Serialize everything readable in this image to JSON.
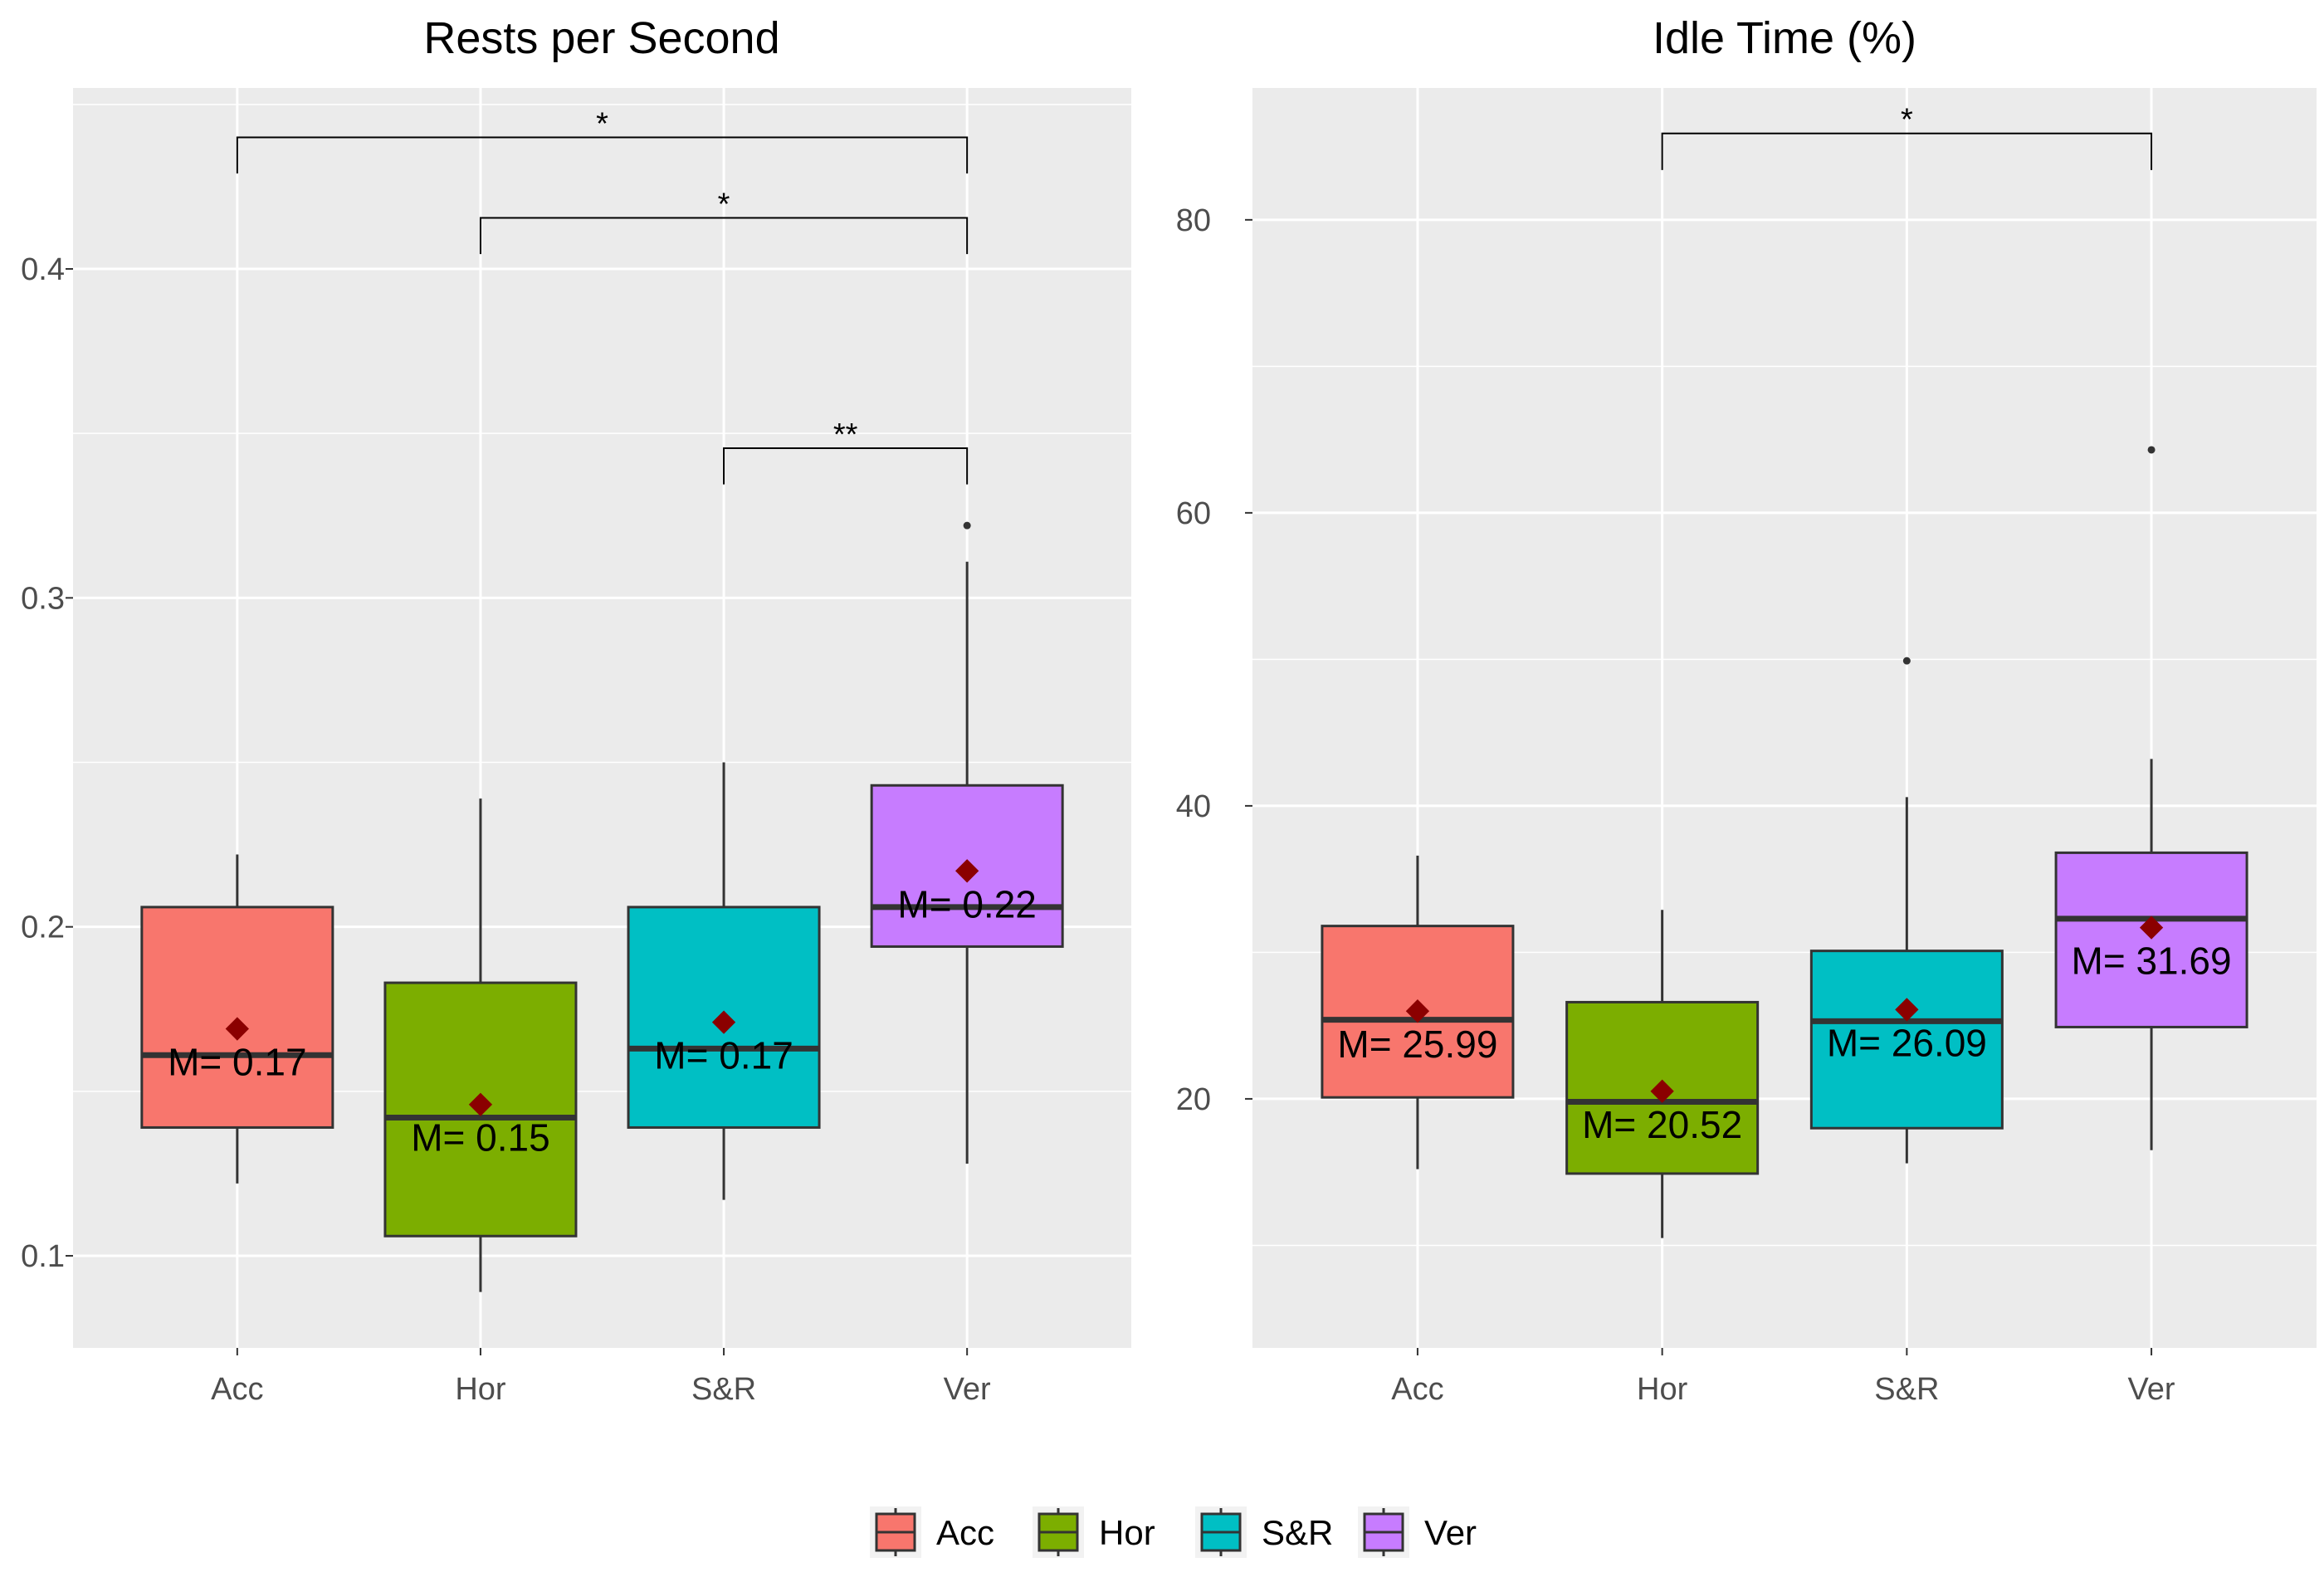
{
  "chart_data": [
    {
      "type": "boxplot",
      "title": "Rests per Second",
      "categories": [
        "Acc",
        "Hor",
        "S&R",
        "Ver"
      ],
      "ylim": [
        0.072,
        0.455
      ],
      "yticks": [
        0.1,
        0.2,
        0.3,
        0.4
      ],
      "ytick_labels": [
        "0.1",
        "0.2",
        "0.3",
        "0.4"
      ],
      "boxes": [
        {
          "category": "Acc",
          "color": "#F8766D",
          "whisker_low": 0.122,
          "q1": 0.139,
          "median": 0.161,
          "q3": 0.206,
          "whisker_high": 0.222,
          "mean": 0.169,
          "mean_label": "M= 0.17",
          "outliers": []
        },
        {
          "category": "Hor",
          "color": "#7CAE00",
          "whisker_low": 0.089,
          "q1": 0.106,
          "median": 0.142,
          "q3": 0.183,
          "whisker_high": 0.239,
          "mean": 0.146,
          "mean_label": "M= 0.15",
          "outliers": []
        },
        {
          "category": "S&R",
          "color": "#00BFC4",
          "whisker_low": 0.117,
          "q1": 0.139,
          "median": 0.163,
          "q3": 0.206,
          "whisker_high": 0.25,
          "mean": 0.171,
          "mean_label": "M= 0.17",
          "outliers": []
        },
        {
          "category": "Ver",
          "color": "#C77CFF",
          "whisker_low": 0.128,
          "q1": 0.194,
          "median": 0.206,
          "q3": 0.243,
          "whisker_high": 0.311,
          "mean": 0.217,
          "mean_label": "M= 0.22",
          "outliers": [
            0.322
          ]
        }
      ],
      "significance": [
        {
          "from": "Acc",
          "to": "Ver",
          "y": 0.44,
          "tip_y": 0.429,
          "label": "*"
        },
        {
          "from": "Hor",
          "to": "Ver",
          "y": 0.4155,
          "tip_y": 0.4045,
          "label": "*"
        },
        {
          "from": "S&R",
          "to": "Ver",
          "y": 0.3455,
          "tip_y": 0.3345,
          "label": "**"
        }
      ]
    },
    {
      "type": "boxplot",
      "title": "Idle Time (%)",
      "categories": [
        "Acc",
        "Hor",
        "S&R",
        "Ver"
      ],
      "ylim": [
        3,
        89
      ],
      "yticks": [
        20,
        40,
        60,
        80
      ],
      "ytick_labels": [
        "20",
        "40",
        "60",
        "80"
      ],
      "boxes": [
        {
          "category": "Acc",
          "color": "#F8766D",
          "whisker_low": 15.2,
          "q1": 20.1,
          "median": 25.4,
          "q3": 31.8,
          "whisker_high": 36.6,
          "mean": 25.99,
          "mean_label": "M= 25.99",
          "outliers": []
        },
        {
          "category": "Hor",
          "color": "#7CAE00",
          "whisker_low": 10.5,
          "q1": 14.9,
          "median": 19.8,
          "q3": 26.6,
          "whisker_high": 32.9,
          "mean": 20.52,
          "mean_label": "M= 20.52",
          "outliers": []
        },
        {
          "category": "S&R",
          "color": "#00BFC4",
          "whisker_low": 15.6,
          "q1": 18.0,
          "median": 25.3,
          "q3": 30.1,
          "whisker_high": 40.6,
          "mean": 26.09,
          "mean_label": "M= 26.09",
          "outliers": [
            49.9
          ]
        },
        {
          "category": "Ver",
          "color": "#C77CFF",
          "whisker_low": 16.5,
          "q1": 24.9,
          "median": 32.3,
          "q3": 36.8,
          "whisker_high": 43.2,
          "mean": 31.69,
          "mean_label": "M= 31.69",
          "outliers": [
            64.3
          ]
        }
      ],
      "significance": [
        {
          "from": "Hor",
          "to": "Ver",
          "y": 85.9,
          "tip_y": 83.4,
          "label": "*"
        }
      ]
    }
  ],
  "legend": {
    "position": "bottom",
    "items": [
      {
        "label": "Acc",
        "color": "#F8766D"
      },
      {
        "label": "Hor",
        "color": "#7CAE00"
      },
      {
        "label": "S&R",
        "color": "#00BFC4"
      },
      {
        "label": "Ver",
        "color": "#C77CFF"
      }
    ]
  },
  "style": {
    "panel_bg": "#EBEBEB",
    "grid_color": "#FFFFFF",
    "mean_marker_color": "#8B0000",
    "line_color": "#333333"
  }
}
